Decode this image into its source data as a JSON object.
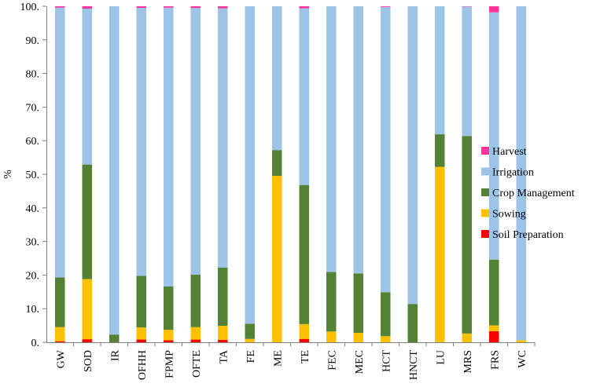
{
  "chart_data": {
    "type": "bar",
    "stacked": true,
    "title": "",
    "xlabel": "",
    "ylabel": "%",
    "ylim": [
      0,
      100
    ],
    "yticks": [
      "0.",
      "10.",
      "20.",
      "30.",
      "40.",
      "50.",
      "60.",
      "70.",
      "80.",
      "90.",
      "100."
    ],
    "grid": false,
    "legend_position": "right",
    "categories": [
      "GW",
      "SOD",
      "IR",
      "OFHH",
      "FPMP",
      "OFTE",
      "TA",
      "FE",
      "ME",
      "TE",
      "FEC",
      "MEC",
      "HCT",
      "HNCT",
      "LU",
      "MRS",
      "FRS",
      "WC"
    ],
    "series": [
      {
        "name": "Soil Preparation",
        "color": "#ff0000",
        "values": [
          0.3,
          0.9,
          0.0,
          0.8,
          0.6,
          0.8,
          0.7,
          0.0,
          0.0,
          1.0,
          0.0,
          0.0,
          0.0,
          0.0,
          0.0,
          0.0,
          3.3,
          0.0
        ]
      },
      {
        "name": "Sowing",
        "color": "#ffc000",
        "values": [
          4.2,
          17.9,
          0.0,
          3.6,
          3.1,
          3.7,
          4.2,
          1.0,
          49.5,
          4.4,
          3.2,
          2.8,
          1.8,
          0.0,
          52.2,
          2.6,
          1.7,
          0.6
        ]
      },
      {
        "name": "Crop Management",
        "color": "#548235",
        "values": [
          14.8,
          34.1,
          2.3,
          15.4,
          12.9,
          15.6,
          17.3,
          4.5,
          7.7,
          41.4,
          17.7,
          17.7,
          13.1,
          11.4,
          9.7,
          58.8,
          19.6,
          0.0
        ]
      },
      {
        "name": "Irrigation",
        "color": "#9dc3e6",
        "values": [
          80.3,
          46.4,
          97.7,
          79.7,
          83.0,
          79.4,
          77.2,
          94.5,
          42.8,
          52.6,
          79.1,
          79.5,
          84.9,
          88.6,
          38.1,
          38.5,
          73.6,
          99.4
        ]
      },
      {
        "name": "Harvest",
        "color": "#ff3399",
        "values": [
          0.4,
          0.7,
          0.0,
          0.5,
          0.4,
          0.5,
          0.6,
          0.0,
          0.0,
          0.6,
          0.0,
          0.0,
          0.2,
          0.0,
          0.0,
          0.1,
          1.8,
          0.0
        ]
      }
    ]
  }
}
